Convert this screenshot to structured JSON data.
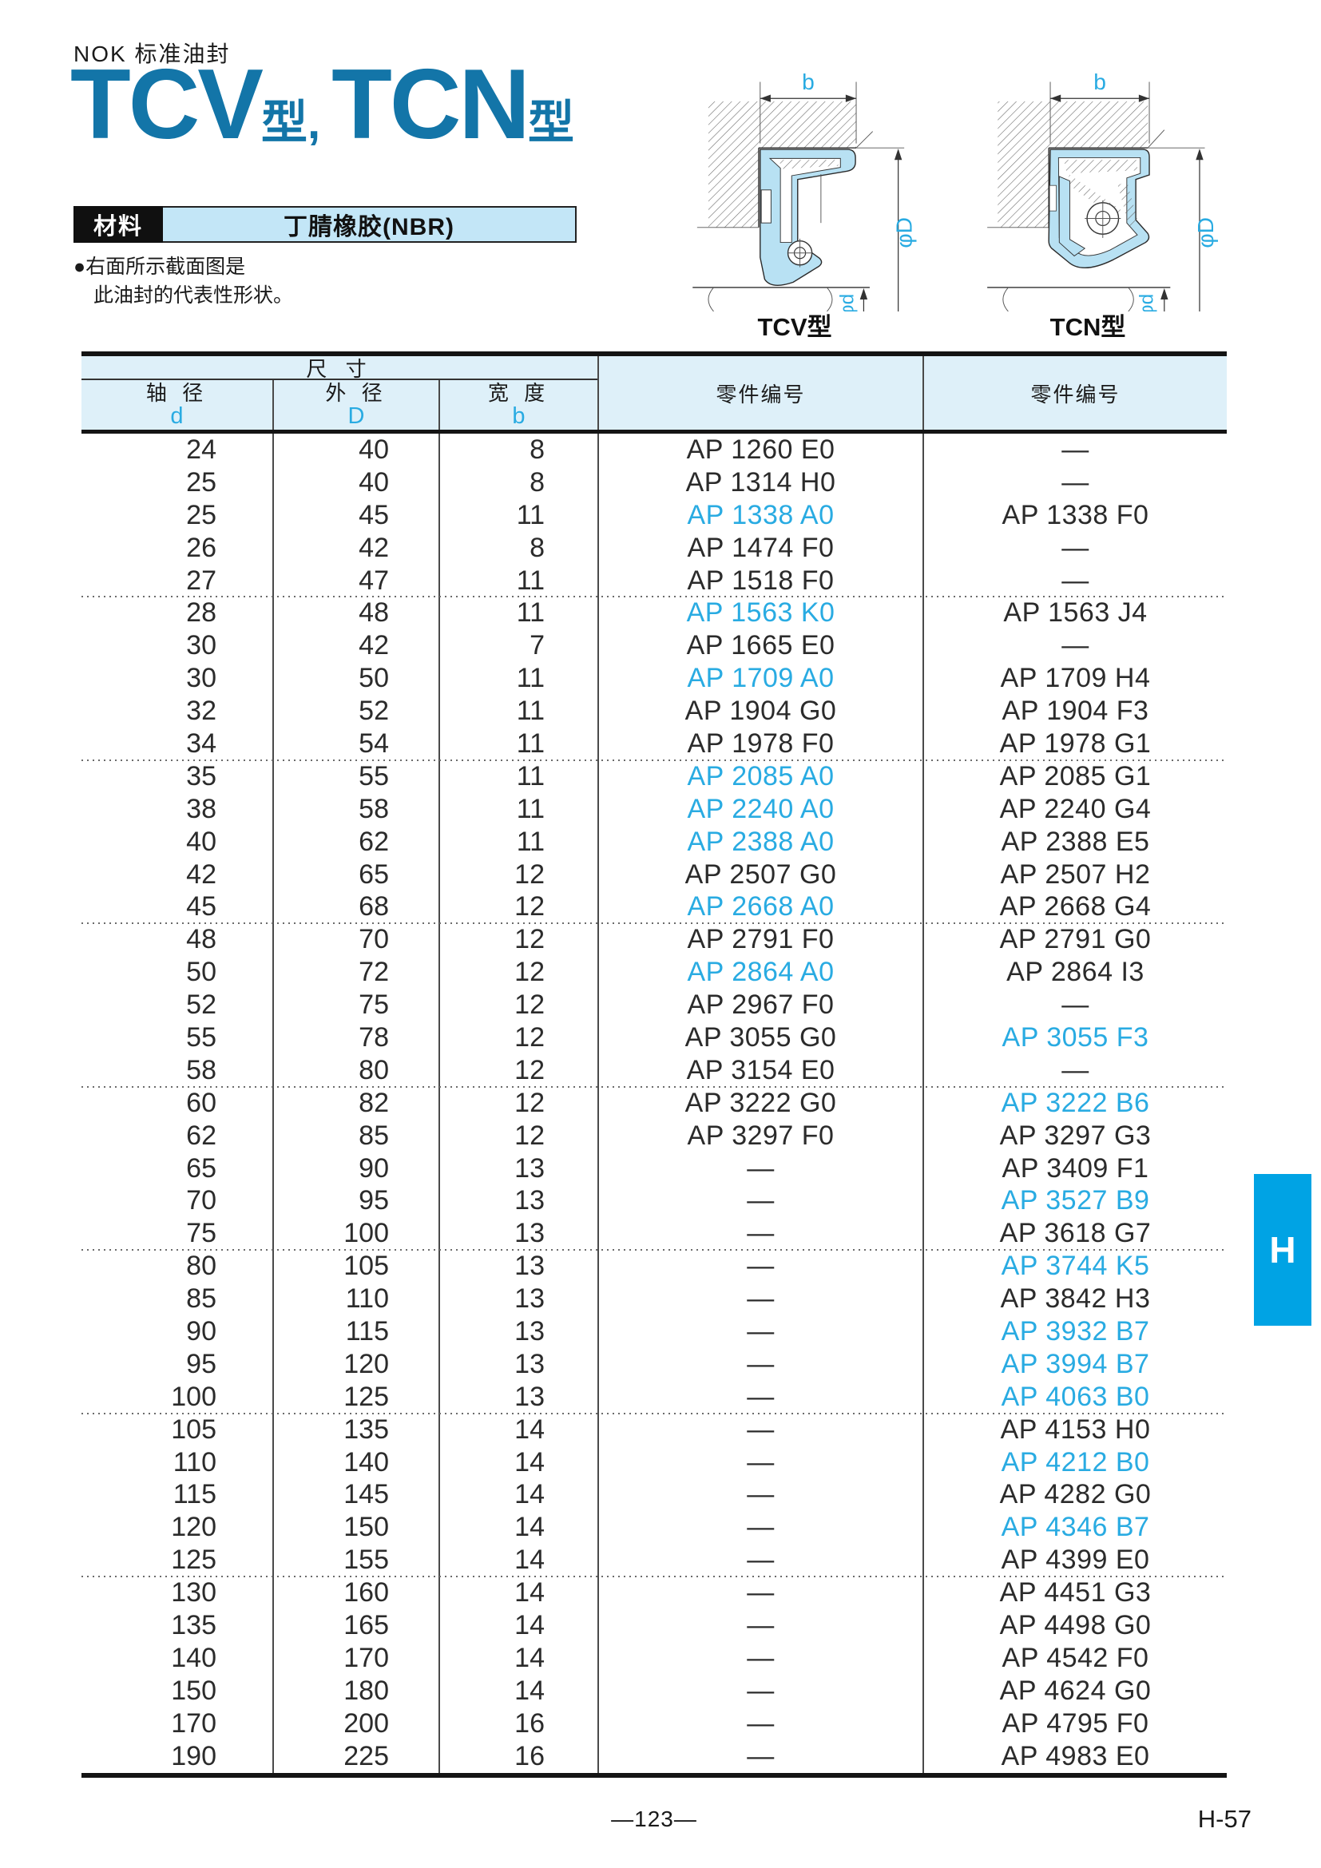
{
  "header": {
    "brand": "NOK 标准油封",
    "title_tcv": "TCV",
    "title_kata1": "型,",
    "title_tcn": "TCN",
    "title_kata2": "型"
  },
  "material": {
    "label": "材料",
    "value": "丁腈橡胶(NBR)"
  },
  "note": {
    "line1": "●右面所示截面图是",
    "line2": "此油封的代表性形状。"
  },
  "diagrams": {
    "tcv_label": "TCV型",
    "tcn_label": "TCN型",
    "dim_b": "b",
    "dim_phiD": "φD",
    "dim_phid": "φd"
  },
  "colors": {
    "title_blue": "#1375a8",
    "accent_blue": "#29abe2",
    "header_bg": "#def0f9",
    "material_bg": "#c3e6f7",
    "seal_fill": "#b8e1f3",
    "tab_blue": "#00a3e4"
  },
  "table": {
    "header": {
      "size_group": "尺 寸",
      "axis_dia": "轴 径",
      "outer_dia": "外 径",
      "width_label": "宽 度",
      "sym_d": "d",
      "sym_D": "D",
      "sym_b": "b",
      "part_no_tcv": "零件编号",
      "part_no_tcn": "零件编号"
    },
    "group_sizes": [
      5,
      5,
      5,
      5,
      5,
      5,
      5,
      6
    ],
    "rows": [
      {
        "d": "24",
        "D": "40",
        "b": "8",
        "tcv": "AP 1260 E0",
        "tcv_blue": false,
        "tcn": "—",
        "tcn_blue": false
      },
      {
        "d": "25",
        "D": "40",
        "b": "8",
        "tcv": "AP 1314 H0",
        "tcv_blue": false,
        "tcn": "—",
        "tcn_blue": false
      },
      {
        "d": "25",
        "D": "45",
        "b": "11",
        "tcv": "AP 1338 A0",
        "tcv_blue": true,
        "tcn": "AP 1338 F0",
        "tcn_blue": false
      },
      {
        "d": "26",
        "D": "42",
        "b": "8",
        "tcv": "AP 1474 F0",
        "tcv_blue": false,
        "tcn": "—",
        "tcn_blue": false
      },
      {
        "d": "27",
        "D": "47",
        "b": "11",
        "tcv": "AP 1518 F0",
        "tcv_blue": false,
        "tcn": "—",
        "tcn_blue": false
      },
      {
        "d": "28",
        "D": "48",
        "b": "11",
        "tcv": "AP 1563 K0",
        "tcv_blue": true,
        "tcn": "AP 1563 J4",
        "tcn_blue": false
      },
      {
        "d": "30",
        "D": "42",
        "b": "7",
        "tcv": "AP 1665 E0",
        "tcv_blue": false,
        "tcn": "—",
        "tcn_blue": false
      },
      {
        "d": "30",
        "D": "50",
        "b": "11",
        "tcv": "AP 1709 A0",
        "tcv_blue": true,
        "tcn": "AP 1709 H4",
        "tcn_blue": false
      },
      {
        "d": "32",
        "D": "52",
        "b": "11",
        "tcv": "AP 1904 G0",
        "tcv_blue": false,
        "tcn": "AP 1904 F3",
        "tcn_blue": false
      },
      {
        "d": "34",
        "D": "54",
        "b": "11",
        "tcv": "AP 1978 F0",
        "tcv_blue": false,
        "tcn": "AP 1978 G1",
        "tcn_blue": false
      },
      {
        "d": "35",
        "D": "55",
        "b": "11",
        "tcv": "AP 2085 A0",
        "tcv_blue": true,
        "tcn": "AP 2085 G1",
        "tcn_blue": false
      },
      {
        "d": "38",
        "D": "58",
        "b": "11",
        "tcv": "AP 2240 A0",
        "tcv_blue": true,
        "tcn": "AP 2240 G4",
        "tcn_blue": false
      },
      {
        "d": "40",
        "D": "62",
        "b": "11",
        "tcv": "AP 2388 A0",
        "tcv_blue": true,
        "tcn": "AP 2388 E5",
        "tcn_blue": false
      },
      {
        "d": "42",
        "D": "65",
        "b": "12",
        "tcv": "AP 2507 G0",
        "tcv_blue": false,
        "tcn": "AP 2507 H2",
        "tcn_blue": false
      },
      {
        "d": "45",
        "D": "68",
        "b": "12",
        "tcv": "AP 2668 A0",
        "tcv_blue": true,
        "tcn": "AP 2668 G4",
        "tcn_blue": false
      },
      {
        "d": "48",
        "D": "70",
        "b": "12",
        "tcv": "AP 2791 F0",
        "tcv_blue": false,
        "tcn": "AP 2791 G0",
        "tcn_blue": false
      },
      {
        "d": "50",
        "D": "72",
        "b": "12",
        "tcv": "AP 2864 A0",
        "tcv_blue": true,
        "tcn": "AP 2864 I3",
        "tcn_blue": false
      },
      {
        "d": "52",
        "D": "75",
        "b": "12",
        "tcv": "AP 2967 F0",
        "tcv_blue": false,
        "tcn": "—",
        "tcn_blue": false
      },
      {
        "d": "55",
        "D": "78",
        "b": "12",
        "tcv": "AP 3055 G0",
        "tcv_blue": false,
        "tcn": "AP 3055 F3",
        "tcn_blue": true
      },
      {
        "d": "58",
        "D": "80",
        "b": "12",
        "tcv": "AP 3154 E0",
        "tcv_blue": false,
        "tcn": "—",
        "tcn_blue": false
      },
      {
        "d": "60",
        "D": "82",
        "b": "12",
        "tcv": "AP 3222 G0",
        "tcv_blue": false,
        "tcn": "AP 3222 B6",
        "tcn_blue": true
      },
      {
        "d": "62",
        "D": "85",
        "b": "12",
        "tcv": "AP 3297 F0",
        "tcv_blue": false,
        "tcn": "AP 3297 G3",
        "tcn_blue": false
      },
      {
        "d": "65",
        "D": "90",
        "b": "13",
        "tcv": "—",
        "tcv_blue": false,
        "tcn": "AP 3409 F1",
        "tcn_blue": false
      },
      {
        "d": "70",
        "D": "95",
        "b": "13",
        "tcv": "—",
        "tcv_blue": false,
        "tcn": "AP 3527 B9",
        "tcn_blue": true
      },
      {
        "d": "75",
        "D": "100",
        "b": "13",
        "tcv": "—",
        "tcv_blue": false,
        "tcn": "AP 3618 G7",
        "tcn_blue": false
      },
      {
        "d": "80",
        "D": "105",
        "b": "13",
        "tcv": "—",
        "tcv_blue": false,
        "tcn": "AP 3744 K5",
        "tcn_blue": true
      },
      {
        "d": "85",
        "D": "110",
        "b": "13",
        "tcv": "—",
        "tcv_blue": false,
        "tcn": "AP 3842 H3",
        "tcn_blue": false
      },
      {
        "d": "90",
        "D": "115",
        "b": "13",
        "tcv": "—",
        "tcv_blue": false,
        "tcn": "AP 3932 B7",
        "tcn_blue": true
      },
      {
        "d": "95",
        "D": "120",
        "b": "13",
        "tcv": "—",
        "tcv_blue": false,
        "tcn": "AP 3994 B7",
        "tcn_blue": true
      },
      {
        "d": "100",
        "D": "125",
        "b": "13",
        "tcv": "—",
        "tcv_blue": false,
        "tcn": "AP 4063 B0",
        "tcn_blue": true
      },
      {
        "d": "105",
        "D": "135",
        "b": "14",
        "tcv": "—",
        "tcv_blue": false,
        "tcn": "AP 4153 H0",
        "tcn_blue": false
      },
      {
        "d": "110",
        "D": "140",
        "b": "14",
        "tcv": "—",
        "tcv_blue": false,
        "tcn": "AP 4212 B0",
        "tcn_blue": true
      },
      {
        "d": "115",
        "D": "145",
        "b": "14",
        "tcv": "—",
        "tcv_blue": false,
        "tcn": "AP 4282 G0",
        "tcn_blue": false
      },
      {
        "d": "120",
        "D": "150",
        "b": "14",
        "tcv": "—",
        "tcv_blue": false,
        "tcn": "AP 4346 B7",
        "tcn_blue": true
      },
      {
        "d": "125",
        "D": "155",
        "b": "14",
        "tcv": "—",
        "tcv_blue": false,
        "tcn": "AP 4399 E0",
        "tcn_blue": false
      },
      {
        "d": "130",
        "D": "160",
        "b": "14",
        "tcv": "—",
        "tcv_blue": false,
        "tcn": "AP 4451 G3",
        "tcn_blue": false
      },
      {
        "d": "135",
        "D": "165",
        "b": "14",
        "tcv": "—",
        "tcv_blue": false,
        "tcn": "AP 4498 G0",
        "tcn_blue": false
      },
      {
        "d": "140",
        "D": "170",
        "b": "14",
        "tcv": "—",
        "tcv_blue": false,
        "tcn": "AP 4542 F0",
        "tcn_blue": false
      },
      {
        "d": "150",
        "D": "180",
        "b": "14",
        "tcv": "—",
        "tcv_blue": false,
        "tcn": "AP 4624 G0",
        "tcn_blue": false
      },
      {
        "d": "170",
        "D": "200",
        "b": "16",
        "tcv": "—",
        "tcv_blue": false,
        "tcn": "AP 4795 F0",
        "tcn_blue": false
      },
      {
        "d": "190",
        "D": "225",
        "b": "16",
        "tcv": "—",
        "tcv_blue": false,
        "tcn": "AP 4983 E0",
        "tcn_blue": false
      }
    ]
  },
  "footer": {
    "page_number": "—123—",
    "page_code": "H-57",
    "tab_label": "H"
  }
}
